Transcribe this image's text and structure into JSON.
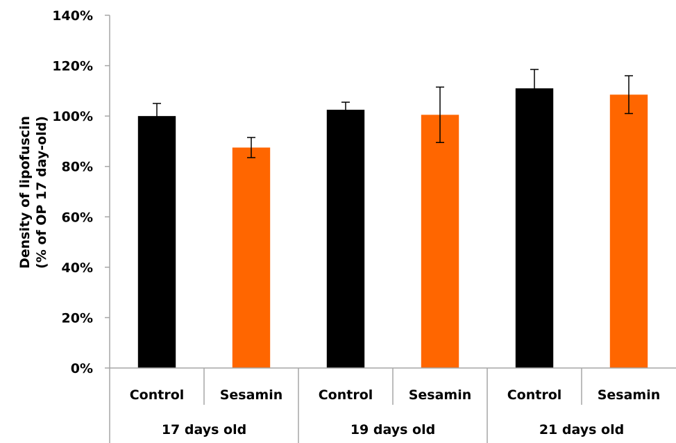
{
  "chart_data": {
    "type": "bar",
    "title": "",
    "ylabel_lines": [
      "Density of lipofuscin",
      "(% of OP 17 day-old)"
    ],
    "ylim": [
      0,
      140
    ],
    "yticks": [
      0,
      20,
      40,
      60,
      80,
      100,
      120,
      140
    ],
    "ytick_labels": [
      "0%",
      "20%",
      "40%",
      "60%",
      "80%",
      "100%",
      "120%",
      "140%"
    ],
    "groups": [
      {
        "label": "17 days old",
        "bars": [
          {
            "category": "Control",
            "value": 100,
            "error": 5,
            "color": "#000000"
          },
          {
            "category": "Sesamin",
            "value": 87.5,
            "error": 4,
            "color": "#ff6600"
          }
        ]
      },
      {
        "label": "19 days old",
        "bars": [
          {
            "category": "Control",
            "value": 102.5,
            "error": 3,
            "color": "#000000"
          },
          {
            "category": "Sesamin",
            "value": 100.5,
            "error": 11,
            "color": "#ff6600"
          }
        ]
      },
      {
        "label": "21 days old",
        "bars": [
          {
            "category": "Control",
            "value": 111,
            "error": 7.5,
            "color": "#000000"
          },
          {
            "category": "Sesamin",
            "value": 108.5,
            "error": 7.5,
            "color": "#ff6600"
          }
        ]
      }
    ],
    "grid": false,
    "legend": "none"
  }
}
